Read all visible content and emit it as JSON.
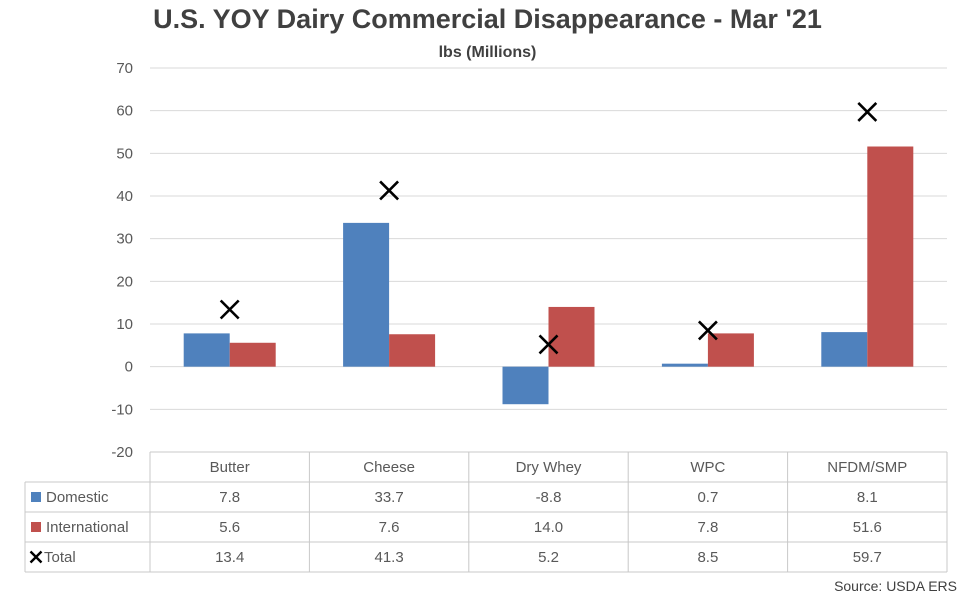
{
  "chart_data": {
    "type": "bar",
    "title": "U.S. YOY Dairy Commercial Disappearance - Mar '21",
    "subtitle": "lbs (Millions)",
    "categories": [
      "Butter",
      "Cheese",
      "Dry Whey",
      "WPC",
      "NFDM/SMP"
    ],
    "series": [
      {
        "name": "Domestic",
        "kind": "bar",
        "color": "#4F81BD",
        "values": [
          7.8,
          33.7,
          -8.8,
          0.7,
          8.1
        ],
        "labels": [
          "7.8",
          "33.7",
          "-8.8",
          "0.7",
          "8.1"
        ]
      },
      {
        "name": "International",
        "kind": "bar",
        "color": "#C0504D",
        "values": [
          5.6,
          7.6,
          14.0,
          7.8,
          51.6
        ],
        "labels": [
          "5.6",
          "7.6",
          "14.0",
          "7.8",
          "51.6"
        ]
      },
      {
        "name": "Total",
        "kind": "marker",
        "marker": "x",
        "color": "#000000",
        "values": [
          13.4,
          41.3,
          5.2,
          8.5,
          59.7
        ],
        "labels": [
          "13.4",
          "41.3",
          "5.2",
          "8.5",
          "59.7"
        ]
      }
    ],
    "ylim": [
      -20,
      70
    ],
    "yticks": [
      -20,
      -10,
      0,
      10,
      20,
      30,
      40,
      50,
      60,
      70
    ],
    "grid": true,
    "legend": "data-table"
  },
  "source": "Source: USDA ERS"
}
